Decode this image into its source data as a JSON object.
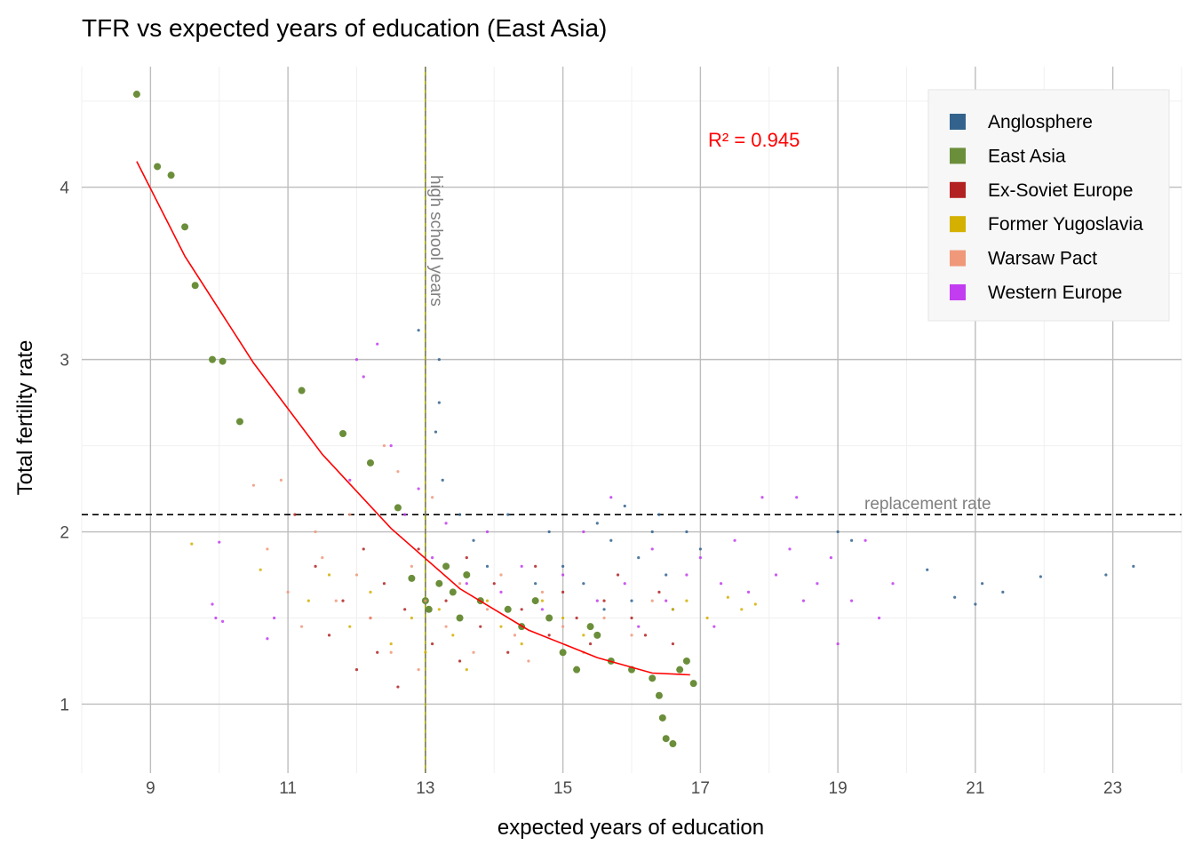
{
  "chart_data": {
    "type": "scatter",
    "title": "TFR vs expected years of education (East Asia)",
    "xlabel": "expected years of education",
    "ylabel": "Total fertility rate",
    "xlim": [
      8.0,
      24.0
    ],
    "ylim": [
      0.6,
      4.7
    ],
    "x_ticks": [
      "9",
      "11",
      "13",
      "15",
      "17",
      "19",
      "21",
      "23"
    ],
    "y_ticks": [
      "1",
      "2",
      "3",
      "4"
    ],
    "grid": true,
    "legend_position": "top-right",
    "r2_label": "R² = 0.945",
    "reference_lines": {
      "replacement": {
        "y": 2.1,
        "label": "replacement rate"
      },
      "high_school": {
        "x": 13,
        "label": "high school years"
      }
    },
    "series": [
      {
        "name": "Anglosphere",
        "color": "#33638d",
        "point_size": "small",
        "points": [
          [
            12.9,
            3.17
          ],
          [
            13.2,
            3.0
          ],
          [
            13.2,
            2.75
          ],
          [
            13.15,
            2.58
          ],
          [
            13.25,
            2.3
          ],
          [
            13.5,
            2.1
          ],
          [
            13.7,
            1.95
          ],
          [
            14.2,
            2.1
          ],
          [
            14.8,
            2.0
          ],
          [
            15.0,
            1.8
          ],
          [
            15.3,
            1.7
          ],
          [
            15.5,
            2.05
          ],
          [
            15.7,
            1.95
          ],
          [
            15.9,
            2.15
          ],
          [
            16.0,
            1.6
          ],
          [
            16.1,
            1.85
          ],
          [
            16.3,
            2.0
          ],
          [
            16.5,
            1.75
          ],
          [
            16.6,
            1.55
          ],
          [
            16.8,
            2.0
          ],
          [
            17.0,
            1.9
          ],
          [
            16.4,
            2.1
          ],
          [
            15.6,
            1.55
          ],
          [
            14.6,
            1.7
          ],
          [
            13.9,
            1.8
          ],
          [
            19.0,
            2.0
          ],
          [
            19.2,
            1.95
          ],
          [
            20.3,
            1.78
          ],
          [
            20.7,
            1.62
          ],
          [
            21.0,
            1.58
          ],
          [
            21.1,
            1.7
          ],
          [
            21.4,
            1.65
          ],
          [
            21.95,
            1.74
          ],
          [
            22.9,
            1.75
          ],
          [
            23.3,
            1.8
          ]
        ]
      },
      {
        "name": "East Asia",
        "color": "#6b8e3a",
        "point_size": "large",
        "points": [
          [
            8.8,
            4.54
          ],
          [
            9.1,
            4.12
          ],
          [
            9.3,
            4.07
          ],
          [
            9.5,
            3.77
          ],
          [
            9.65,
            3.43
          ],
          [
            9.9,
            3.0
          ],
          [
            10.05,
            2.99
          ],
          [
            10.3,
            2.64
          ],
          [
            11.2,
            2.82
          ],
          [
            11.8,
            2.57
          ],
          [
            12.2,
            2.4
          ],
          [
            12.6,
            2.14
          ],
          [
            12.8,
            1.73
          ],
          [
            13.0,
            1.6
          ],
          [
            13.05,
            1.55
          ],
          [
            13.2,
            1.7
          ],
          [
            13.3,
            1.8
          ],
          [
            13.4,
            1.65
          ],
          [
            13.5,
            1.5
          ],
          [
            13.6,
            1.75
          ],
          [
            13.8,
            1.6
          ],
          [
            14.2,
            1.55
          ],
          [
            14.4,
            1.45
          ],
          [
            14.6,
            1.6
          ],
          [
            14.8,
            1.5
          ],
          [
            15.0,
            1.3
          ],
          [
            15.2,
            1.2
          ],
          [
            15.4,
            1.45
          ],
          [
            15.5,
            1.4
          ],
          [
            15.7,
            1.25
          ],
          [
            16.0,
            1.2
          ],
          [
            16.3,
            1.15
          ],
          [
            16.4,
            1.05
          ],
          [
            16.45,
            0.92
          ],
          [
            16.5,
            0.8
          ],
          [
            16.6,
            0.77
          ],
          [
            16.7,
            1.2
          ],
          [
            16.8,
            1.25
          ],
          [
            16.9,
            1.12
          ]
        ]
      },
      {
        "name": "Ex-Soviet Europe",
        "color": "#b22222",
        "point_size": "small",
        "points": [
          [
            11.1,
            2.1
          ],
          [
            11.4,
            1.8
          ],
          [
            11.6,
            1.4
          ],
          [
            11.8,
            1.6
          ],
          [
            12.0,
            1.2
          ],
          [
            12.1,
            1.9
          ],
          [
            12.2,
            1.5
          ],
          [
            12.3,
            1.3
          ],
          [
            12.4,
            1.7
          ],
          [
            12.6,
            1.1
          ],
          [
            12.7,
            1.55
          ],
          [
            12.9,
            1.9
          ],
          [
            13.1,
            1.35
          ],
          [
            13.3,
            1.6
          ],
          [
            13.5,
            1.25
          ],
          [
            13.6,
            1.85
          ],
          [
            13.8,
            1.45
          ],
          [
            14.0,
            1.7
          ],
          [
            14.2,
            1.3
          ],
          [
            14.4,
            1.55
          ],
          [
            14.6,
            1.8
          ],
          [
            14.8,
            1.4
          ],
          [
            15.0,
            1.65
          ],
          [
            15.2,
            1.5
          ],
          [
            15.4,
            1.35
          ],
          [
            15.6,
            1.6
          ],
          [
            15.8,
            1.75
          ],
          [
            16.0,
            1.5
          ],
          [
            16.2,
            1.4
          ],
          [
            16.4,
            1.65
          ],
          [
            16.6,
            1.35
          ]
        ]
      },
      {
        "name": "Former Yugoslavia",
        "color": "#d4b000",
        "point_size": "small",
        "points": [
          [
            9.6,
            1.93
          ],
          [
            10.6,
            1.78
          ],
          [
            11.3,
            1.6
          ],
          [
            11.6,
            1.75
          ],
          [
            11.9,
            1.45
          ],
          [
            12.2,
            1.65
          ],
          [
            12.5,
            1.35
          ],
          [
            12.8,
            1.5
          ],
          [
            13.0,
            1.3
          ],
          [
            13.2,
            1.55
          ],
          [
            13.4,
            1.4
          ],
          [
            13.6,
            1.2
          ],
          [
            13.9,
            1.6
          ],
          [
            14.1,
            1.45
          ],
          [
            14.4,
            1.35
          ],
          [
            14.7,
            1.6
          ],
          [
            15.0,
            1.5
          ],
          [
            15.3,
            1.4
          ],
          [
            16.6,
            1.55
          ],
          [
            16.8,
            1.6
          ],
          [
            17.1,
            1.5
          ],
          [
            17.4,
            1.62
          ],
          [
            17.6,
            1.55
          ],
          [
            17.8,
            1.58
          ]
        ]
      },
      {
        "name": "Warsaw Pact",
        "color": "#f0987a",
        "point_size": "small",
        "points": [
          [
            10.5,
            2.27
          ],
          [
            10.7,
            1.9
          ],
          [
            10.9,
            2.3
          ],
          [
            11.0,
            1.65
          ],
          [
            11.2,
            1.45
          ],
          [
            11.4,
            2.0
          ],
          [
            11.5,
            1.85
          ],
          [
            11.7,
            1.6
          ],
          [
            11.9,
            2.1
          ],
          [
            12.0,
            1.75
          ],
          [
            12.2,
            1.5
          ],
          [
            12.4,
            2.5
          ],
          [
            12.5,
            1.3
          ],
          [
            12.6,
            2.35
          ],
          [
            12.8,
            1.8
          ],
          [
            12.9,
            1.2
          ],
          [
            13.0,
            1.6
          ],
          [
            13.1,
            2.2
          ],
          [
            13.3,
            1.45
          ],
          [
            13.5,
            1.7
          ],
          [
            13.7,
            1.3
          ],
          [
            13.9,
            1.55
          ],
          [
            14.1,
            1.75
          ],
          [
            14.3,
            1.4
          ],
          [
            14.5,
            1.25
          ],
          [
            14.7,
            1.65
          ],
          [
            15.0,
            1.45
          ],
          [
            15.3,
            1.3
          ],
          [
            15.6,
            1.5
          ],
          [
            16.0,
            1.4
          ],
          [
            16.3,
            1.6
          ]
        ]
      },
      {
        "name": "Western Europe",
        "color": "#c23cf0",
        "point_size": "small",
        "points": [
          [
            9.9,
            1.58
          ],
          [
            9.95,
            1.5
          ],
          [
            10.05,
            1.48
          ],
          [
            10.0,
            1.94
          ],
          [
            10.8,
            1.5
          ],
          [
            10.7,
            1.38
          ],
          [
            11.9,
            2.3
          ],
          [
            12.0,
            3.0
          ],
          [
            12.1,
            2.9
          ],
          [
            12.3,
            3.09
          ],
          [
            12.5,
            2.5
          ],
          [
            12.7,
            2.1
          ],
          [
            12.9,
            2.25
          ],
          [
            13.1,
            1.85
          ],
          [
            13.3,
            2.05
          ],
          [
            13.6,
            1.7
          ],
          [
            13.9,
            2.0
          ],
          [
            14.1,
            1.65
          ],
          [
            14.4,
            1.8
          ],
          [
            14.7,
            1.55
          ],
          [
            15.0,
            1.75
          ],
          [
            15.3,
            2.0
          ],
          [
            15.5,
            1.6
          ],
          [
            15.7,
            2.2
          ],
          [
            15.9,
            1.7
          ],
          [
            16.1,
            1.45
          ],
          [
            16.3,
            1.9
          ],
          [
            16.5,
            1.6
          ],
          [
            16.8,
            1.75
          ],
          [
            17.0,
            1.85
          ],
          [
            17.3,
            1.7
          ],
          [
            17.5,
            1.95
          ],
          [
            17.7,
            1.65
          ],
          [
            17.9,
            2.2
          ],
          [
            18.1,
            1.75
          ],
          [
            18.3,
            1.9
          ],
          [
            18.5,
            1.6
          ],
          [
            18.7,
            1.7
          ],
          [
            18.9,
            1.85
          ],
          [
            19.0,
            1.35
          ],
          [
            19.2,
            1.6
          ],
          [
            19.4,
            1.95
          ],
          [
            19.6,
            1.5
          ],
          [
            19.8,
            1.7
          ],
          [
            18.4,
            2.2
          ],
          [
            17.2,
            1.45
          ]
        ]
      }
    ],
    "fit_curve": {
      "color": "#ff0000",
      "points": [
        [
          8.8,
          4.15
        ],
        [
          9.5,
          3.6
        ],
        [
          10.5,
          2.98
        ],
        [
          11.5,
          2.45
        ],
        [
          12.5,
          2.02
        ],
        [
          13.5,
          1.67
        ],
        [
          14.5,
          1.43
        ],
        [
          15.5,
          1.27
        ],
        [
          16.3,
          1.18
        ],
        [
          16.85,
          1.17
        ]
      ]
    }
  }
}
